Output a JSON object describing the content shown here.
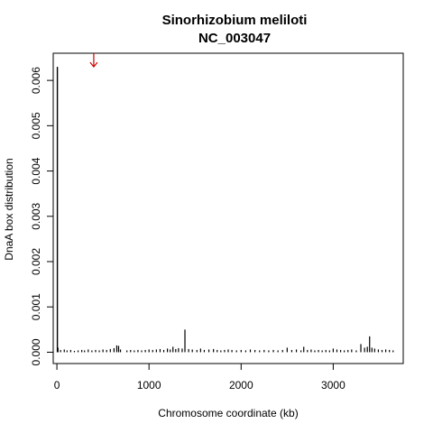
{
  "chart_data": {
    "type": "bar",
    "title": "Sinorhizobium meliloti",
    "subtitle": "NC_003047",
    "xlabel": "Chromosome coordinate (kb)",
    "ylabel": "DnaA box distribution",
    "xlim": [
      -40,
      3760
    ],
    "ylim": [
      -0.00025,
      0.0066
    ],
    "xticks": [
      0,
      1000,
      2000,
      3000
    ],
    "xtick_labels": [
      "0",
      "1000",
      "2000",
      "3000"
    ],
    "yticks": [
      0,
      0.001,
      0.002,
      0.003,
      0.004,
      0.005,
      0.006
    ],
    "ytick_labels": [
      "0.000",
      "0.001",
      "0.002",
      "0.003",
      "0.004",
      "0.005",
      "0.006"
    ],
    "grid": false,
    "legend": "none",
    "bar_color": "#000000",
    "arrow": {
      "x": 400,
      "y_top": 0.0066,
      "y_bottom": 0.0063,
      "color": "#cc0000"
    },
    "x": [
      5,
      12,
      40,
      80,
      110,
      150,
      190,
      230,
      270,
      300,
      340,
      380,
      420,
      460,
      500,
      540,
      580,
      620,
      650,
      670,
      690,
      760,
      800,
      840,
      880,
      920,
      960,
      1000,
      1040,
      1080,
      1120,
      1160,
      1200,
      1230,
      1260,
      1290,
      1320,
      1360,
      1390,
      1430,
      1470,
      1520,
      1560,
      1600,
      1650,
      1700,
      1740,
      1780,
      1820,
      1860,
      1900,
      1950,
      2000,
      2050,
      2100,
      2150,
      2200,
      2250,
      2300,
      2350,
      2400,
      2450,
      2500,
      2550,
      2600,
      2650,
      2680,
      2720,
      2760,
      2800,
      2840,
      2880,
      2920,
      2960,
      3000,
      3040,
      3080,
      3120,
      3160,
      3200,
      3250,
      3300,
      3340,
      3370,
      3395,
      3420,
      3450,
      3490,
      3530,
      3570,
      3610,
      3650
    ],
    "values": [
      0.0063,
      0.0001,
      5e-05,
      6e-05,
      4e-05,
      5e-05,
      3e-05,
      4e-05,
      5e-05,
      4e-05,
      6e-05,
      4e-05,
      5e-05,
      4e-05,
      6e-05,
      5e-05,
      7e-05,
      9e-05,
      0.00015,
      0.00014,
      6e-05,
      4e-05,
      5e-05,
      4e-05,
      5e-05,
      4e-05,
      5e-05,
      6e-05,
      5e-05,
      6e-05,
      7e-05,
      5e-05,
      8e-05,
      6e-05,
      0.00012,
      7e-05,
      9e-05,
      8e-05,
      0.0005,
      7e-05,
      6e-05,
      5e-05,
      8e-05,
      5e-05,
      6e-05,
      7e-05,
      5e-05,
      4e-05,
      5e-05,
      6e-05,
      5e-05,
      4e-05,
      5e-05,
      4e-05,
      6e-05,
      5e-05,
      4e-05,
      5e-05,
      4e-05,
      5e-05,
      4e-05,
      5e-05,
      0.0001,
      5e-05,
      6e-05,
      4e-05,
      0.00012,
      5e-05,
      6e-05,
      4e-05,
      5e-05,
      4e-05,
      5e-05,
      4e-05,
      8e-05,
      6e-05,
      5e-05,
      4e-05,
      5e-05,
      6e-05,
      4e-05,
      0.00018,
      0.0001,
      0.00012,
      0.00035,
      0.0001,
      8e-05,
      6e-05,
      5e-05,
      6e-05,
      5e-05,
      4e-05
    ]
  }
}
